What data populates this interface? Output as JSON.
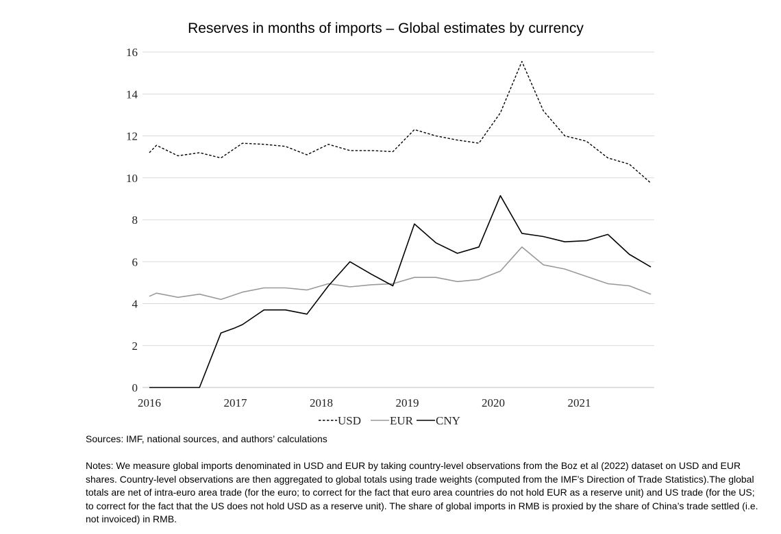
{
  "chart_data": {
    "type": "line",
    "title": "Reserves in months of imports – Global estimates by currency",
    "xlabel": "",
    "ylabel": "",
    "ylim": [
      0,
      16
    ],
    "xlim": [
      2016,
      2021.833
    ],
    "yticks": [
      "0",
      "2",
      "4",
      "6",
      "8",
      "10",
      "12",
      "14",
      "16"
    ],
    "xticks": [
      "2016",
      "2017",
      "2018",
      "2019",
      "2020",
      "2021"
    ],
    "grid": "horizontal",
    "legend_position": "bottom",
    "x": [
      2016,
      2016.083,
      2016.333,
      2016.583,
      2016.833,
      2017,
      2017.083,
      2017.333,
      2017.583,
      2017.833,
      2018.083,
      2018.333,
      2018.583,
      2018.833,
      2019.083,
      2019.333,
      2019.583,
      2019.833,
      2020.083,
      2020.333,
      2020.583,
      2020.833,
      2021.083,
      2021.333,
      2021.583,
      2021.833
    ],
    "series": [
      {
        "name": "USD",
        "style": "dashed",
        "color": "#000000",
        "values": [
          11.2,
          11.55,
          11.05,
          11.2,
          10.95,
          null,
          11.65,
          11.6,
          11.5,
          11.1,
          11.6,
          11.3,
          11.3,
          11.25,
          12.3,
          12.0,
          11.8,
          11.65,
          13.1,
          15.55,
          13.2,
          12.0,
          11.75,
          10.95,
          10.65,
          9.75
        ]
      },
      {
        "name": "EUR",
        "style": "solid",
        "color": "#999999",
        "values": [
          4.35,
          4.5,
          4.3,
          4.45,
          4.2,
          null,
          4.55,
          4.75,
          4.75,
          4.65,
          4.95,
          4.8,
          4.9,
          4.95,
          5.25,
          5.25,
          5.05,
          5.15,
          5.55,
          6.7,
          5.85,
          5.65,
          5.3,
          4.95,
          4.85,
          4.45
        ]
      },
      {
        "name": "CNY",
        "style": "solid",
        "color": "#000000",
        "values": [
          0,
          0,
          0,
          0,
          2.6,
          2.85,
          3.0,
          3.7,
          3.7,
          3.5,
          4.85,
          6.0,
          5.4,
          4.85,
          7.8,
          6.9,
          6.4,
          6.7,
          9.15,
          7.35,
          7.2,
          6.95,
          7.0,
          7.3,
          6.35,
          5.75
        ]
      }
    ]
  },
  "sources": "Sources: IMF, national sources, and authors’ calculations",
  "notes": "Notes: We measure global imports denominated in USD and EUR by taking country-level observations from the Boz et al (2022) dataset on USD and EUR shares. Country-level observations are then aggregated to global totals using trade weights (computed from the IMF’s Direction of Trade Statistics).The global totals are net of intra-euro area trade (for the euro; to correct for the fact that euro area countries do not hold EUR as a reserve unit) and US trade (for the US; to correct for the fact that the US does not hold USD as a reserve unit). The share of global imports in RMB is proxied by the share of China’s trade settled (i.e. not invoiced) in RMB."
}
